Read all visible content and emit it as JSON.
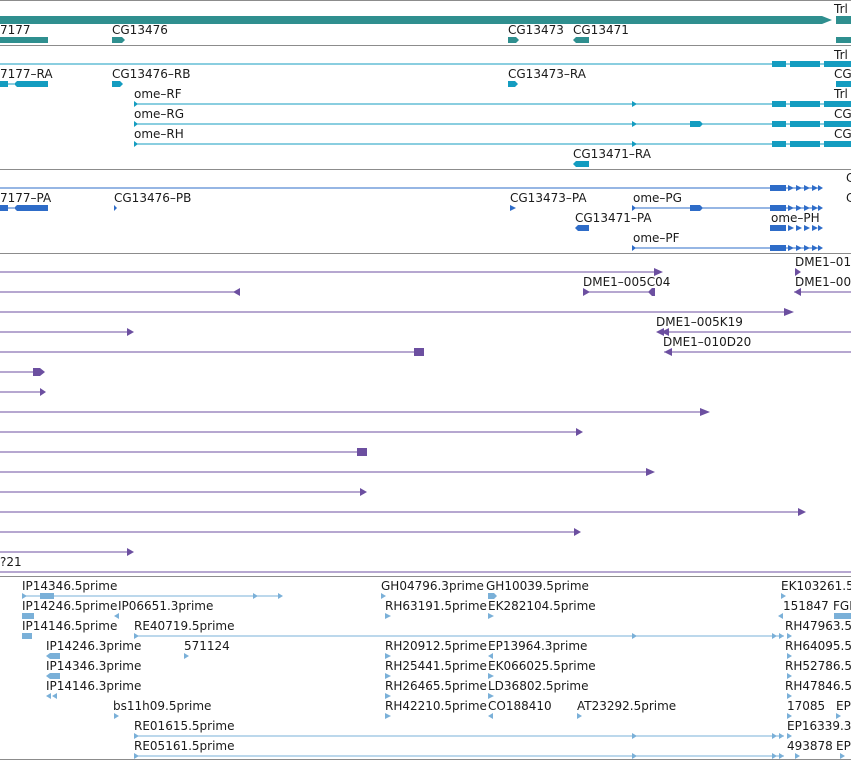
{
  "colors": {
    "gene": "#2f8f8f",
    "transcript": "#149cc0",
    "protein": "#2e6cc8",
    "clone": "#6c4fa0",
    "est": "#7ab0d8",
    "divider": "#8c8c8c"
  },
  "labels": {
    "gene": {
      "cg17177": "7177",
      "cg13476": "CG13476",
      "cg13473": "CG13473",
      "cg13471": "CG13471",
      "trl": "Trl"
    },
    "transcript": {
      "cg17177_ra": "7177–RA",
      "cg13476_rb": "CG13476–RB",
      "cg13473_ra": "CG13473–RA",
      "ome_rf": "ome–RF",
      "ome_rg": "ome–RG",
      "ome_rh": "ome–RH",
      "cg13471_ra": "CG13471–RA",
      "trl_r1": "Trl",
      "cg_r2": "CG",
      "trl_r3": "Trl",
      "cg_r4": "CG",
      "cg_r5": "CG"
    },
    "protein": {
      "cg17177_pa": "7177–PA",
      "cg13476_pb": "CG13476–PB",
      "cg13473_pa": "CG13473–PA",
      "ome_pg": "ome–PG",
      "cg13471_pa": "CG13471–PA",
      "ome_ph": "ome–PH",
      "ome_pf": "ome–PF",
      "c_p1": "C",
      "c_p2": "C"
    },
    "clone": {
      "dme1_01": "DME1–01",
      "dme1_005c04": "DME1–005C04",
      "dme1_00": "DME1–00",
      "dme1_005k19": "DME1–005K19",
      "dme1_010d20": "DME1–010D20",
      "p21": "?21"
    },
    "est": {
      "ip14346_5": "IP14346.5prime",
      "gh04796_3": "GH04796.3prime",
      "gh10039_5": "GH10039.5prime",
      "ek103261": "EK103261.5",
      "ip14246_5": "IP14246.5prime",
      "ip06651_3": "IP06651.3prime",
      "rh63191_5": "RH63191.5prime",
      "ek282104_5": "EK282104.5prime",
      "est151847": "151847",
      "fgi": "FGI",
      "ip14146_5": "IP14146.5prime",
      "re40719_5": "RE40719.5prime",
      "rh47963": "RH47963.5",
      "ip14246_3": "IP14246.3prime",
      "est571124": "571124",
      "rh20912_5": "RH20912.5prime",
      "ep13964_3": "EP13964.3prime",
      "rh64095": "RH64095.5",
      "ip14346_3": "IP14346.3prime",
      "rh25441_5": "RH25441.5prime",
      "ek066025_5": "EK066025.5prime",
      "rh52786": "RH52786.5",
      "ip14146_3": "IP14146.3prime",
      "rh26465_5": "RH26465.5prime",
      "ld36802_5": "LD36802.5prime",
      "rh47846": "RH47846.5",
      "bs11h09_5": "bs11h09.5prime",
      "rh42210_5": "RH42210.5prime",
      "co188410": "CO188410",
      "at23292_5": "AT23292.5prime",
      "est17085": "17085",
      "ep_a": "EP",
      "re01615_5": "RE01615.5prime",
      "ep16339": "EP16339.3",
      "re05161_5": "RE05161.5prime",
      "est493878": "493878",
      "ep_b": "EP"
    }
  }
}
